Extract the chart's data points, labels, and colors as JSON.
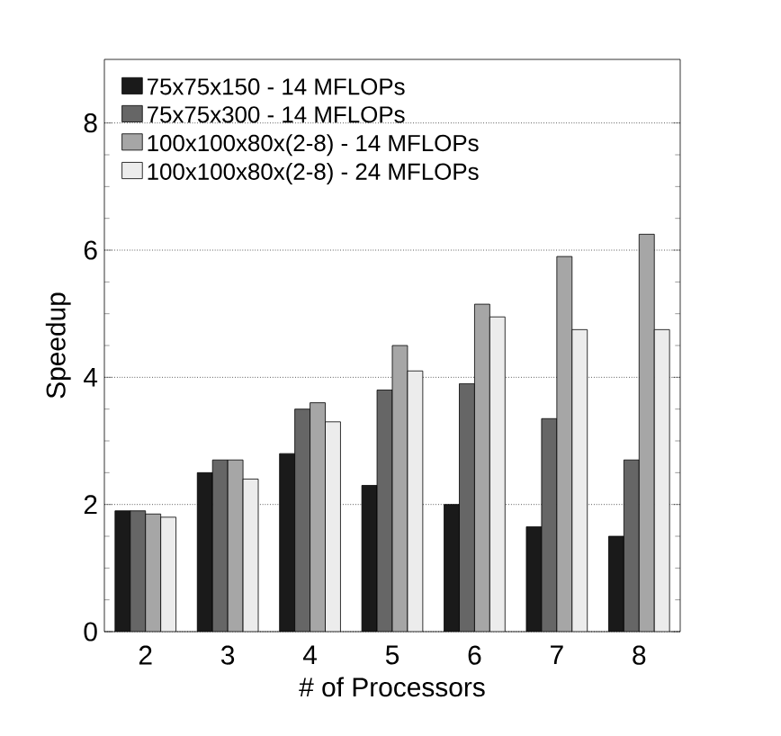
{
  "chart_data": {
    "type": "bar",
    "xlabel": "# of Processors",
    "ylabel": "Speedup",
    "categories": [
      "2",
      "3",
      "4",
      "5",
      "6",
      "7",
      "8"
    ],
    "series": [
      {
        "name": "75x75x150 - 14 MFLOPs",
        "color": "#1a1a1a",
        "values": [
          1.9,
          2.5,
          2.8,
          2.3,
          2.0,
          1.65,
          1.5
        ]
      },
      {
        "name": "75x75x300 - 14 MFLOPs",
        "color": "#666666",
        "values": [
          1.9,
          2.7,
          3.5,
          3.8,
          3.9,
          3.35,
          2.7
        ]
      },
      {
        "name": "100x100x80x(2-8) - 14 MFLOPs",
        "color": "#a6a6a6",
        "values": [
          1.85,
          2.7,
          3.6,
          4.5,
          5.15,
          5.9,
          6.25
        ]
      },
      {
        "name": "100x100x80x(2-8) - 24 MFLOPs",
        "color": "#ececec",
        "values": [
          1.8,
          2.4,
          3.3,
          4.1,
          4.95,
          4.75,
          4.75
        ]
      }
    ],
    "ylim": [
      0,
      9
    ],
    "yticks": [
      0,
      2,
      4,
      6,
      8
    ],
    "grid": "y",
    "legend": "top left"
  }
}
